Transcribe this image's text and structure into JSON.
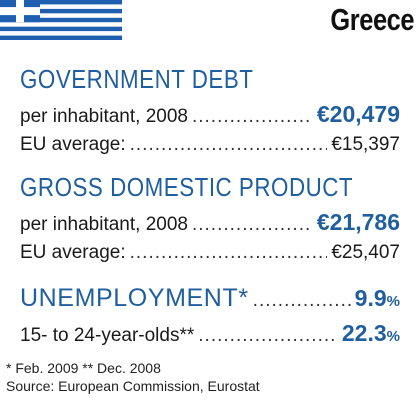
{
  "header": {
    "country": "Greece"
  },
  "flag_colors": {
    "blue": "#1f5fb0",
    "white": "#ffffff"
  },
  "accent_color": "#1f5f9f",
  "sections": {
    "debt": {
      "title": "GOVERNMENT DEBT",
      "row1_label": "per inhabitant, 2008",
      "row1_value": "€20,479",
      "row2_label": "EU average:",
      "row2_value": "€15,397"
    },
    "gdp": {
      "title": "GROSS DOMESTIC PRODUCT",
      "row1_label": "per inhabitant, 2008",
      "row1_value": "€21,786",
      "row2_label": "EU average:",
      "row2_value": "€25,407"
    },
    "unemployment": {
      "title": "UNEMPLOYMENT*",
      "row1_value": "9.9",
      "row1_unit": "%",
      "row2_label": "15- to 24-year-olds**",
      "row2_value": "22.3",
      "row2_unit": "%"
    }
  },
  "footnotes": {
    "line1": "* Feb. 2009   ** Dec. 2008",
    "line2": "Source: European Commission, Eurostat"
  }
}
